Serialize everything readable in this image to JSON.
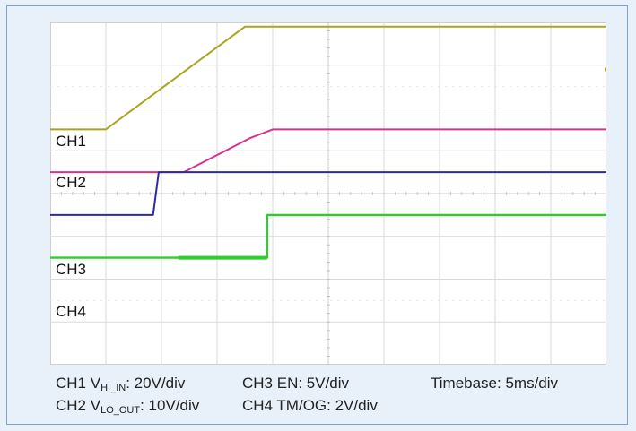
{
  "chart_data": {
    "type": "line",
    "title": "",
    "xlabel": "",
    "ylabel": "",
    "xlim": [
      0,
      10
    ],
    "ylim": [
      -4,
      4
    ],
    "grid": true,
    "series": [
      {
        "name": "CH1",
        "color": "#aaa520",
        "points": [
          [
            0,
            1.5
          ],
          [
            1.0,
            1.5
          ],
          [
            3.5,
            3.9
          ],
          [
            10,
            3.9
          ]
        ]
      },
      {
        "name": "CH2",
        "color": "#d6338b",
        "points": [
          [
            0,
            0.5
          ],
          [
            2.4,
            0.5
          ],
          [
            3.6,
            1.3
          ],
          [
            4.0,
            1.5
          ],
          [
            10,
            1.5
          ]
        ]
      },
      {
        "name": "CH3",
        "color": "#2b2ba8",
        "points": [
          [
            0,
            -0.5
          ],
          [
            1.85,
            -0.5
          ],
          [
            1.85,
            -0.5
          ],
          [
            1.95,
            0.5
          ],
          [
            10,
            0.5
          ]
        ]
      },
      {
        "name": "CH4",
        "color": "#2ecc2e",
        "points": [
          [
            0,
            -1.5
          ],
          [
            3.9,
            -1.5
          ],
          [
            3.9,
            -0.5
          ],
          [
            10,
            -0.5
          ]
        ]
      }
    ],
    "channel_labels": [
      "CH1",
      "CH2",
      "CH3",
      "CH4"
    ],
    "legend_lines": {
      "ch1_prefix": "CH1 V",
      "ch1_sub": "HI_IN",
      "ch1_suffix": ": 20V/div",
      "ch2_prefix": "CH2 V",
      "ch2_sub": "LO_OUT",
      "ch2_suffix": ": 10V/div",
      "ch3": "CH3 EN: 5V/div",
      "ch4": "CH4 TM/OG: 2V/div",
      "timebase": "Timebase: 5ms/div"
    }
  }
}
